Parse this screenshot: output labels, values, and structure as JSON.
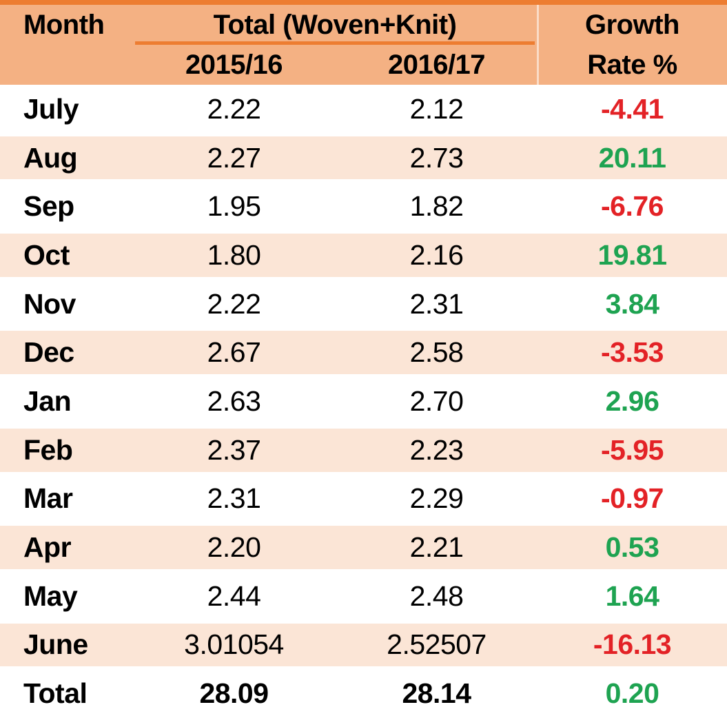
{
  "colors": {
    "accent": "#ED7D31",
    "header_bg": "#F4B183",
    "alt_row_bg": "#FBE5D6",
    "positive": "#1EA351",
    "negative": "#E32226",
    "text": "#000000"
  },
  "header": {
    "month_label": "Month",
    "group_label": "Total (Woven+Knit)",
    "col_2015": "2015/16",
    "col_2016": "2016/17",
    "growth_line1": "Growth",
    "growth_line2": "Rate %"
  },
  "body": {
    "rows": [
      {
        "month": "July",
        "y2015": "2.22",
        "y2016": "2.12",
        "growth": "-4.41",
        "trend": "negative"
      },
      {
        "month": "Aug",
        "y2015": "2.27",
        "y2016": "2.73",
        "growth": "20.11",
        "trend": "positive"
      },
      {
        "month": "Sep",
        "y2015": "1.95",
        "y2016": "1.82",
        "growth": "-6.76",
        "trend": "negative"
      },
      {
        "month": "Oct",
        "y2015": "1.80",
        "y2016": "2.16",
        "growth": "19.81",
        "trend": "positive"
      },
      {
        "month": "Nov",
        "y2015": "2.22",
        "y2016": "2.31",
        "growth": "3.84",
        "trend": "positive"
      },
      {
        "month": "Dec",
        "y2015": "2.67",
        "y2016": "2.58",
        "growth": "-3.53",
        "trend": "negative"
      },
      {
        "month": "Jan",
        "y2015": "2.63",
        "y2016": "2.70",
        "growth": "2.96",
        "trend": "positive"
      },
      {
        "month": "Feb",
        "y2015": "2.37",
        "y2016": "2.23",
        "growth": "-5.95",
        "trend": "negative"
      },
      {
        "month": "Mar",
        "y2015": "2.31",
        "y2016": "2.29",
        "growth": "-0.97",
        "trend": "negative"
      },
      {
        "month": "Apr",
        "y2015": "2.20",
        "y2016": "2.21",
        "growth": "0.53",
        "trend": "positive"
      },
      {
        "month": "May",
        "y2015": "2.44",
        "y2016": "2.48",
        "growth": "1.64",
        "trend": "positive"
      },
      {
        "month": "June",
        "y2015": "3.01054",
        "y2016": "2.52507",
        "growth": "-16.13",
        "trend": "negative"
      },
      {
        "month": "Total",
        "y2015": "28.09",
        "y2016": "28.14",
        "growth": "0.20",
        "trend": "positive",
        "is_total": true
      }
    ]
  },
  "chart_data": {
    "type": "table",
    "title": "",
    "columns": [
      "Month",
      "2015/16",
      "2016/17",
      "Growth Rate %"
    ],
    "column_group": {
      "label": "Total (Woven+Knit)",
      "spans": [
        "2015/16",
        "2016/17"
      ]
    },
    "rows": [
      [
        "July",
        2.22,
        2.12,
        -4.41
      ],
      [
        "Aug",
        2.27,
        2.73,
        20.11
      ],
      [
        "Sep",
        1.95,
        1.82,
        -6.76
      ],
      [
        "Oct",
        1.8,
        2.16,
        19.81
      ],
      [
        "Nov",
        2.22,
        2.31,
        3.84
      ],
      [
        "Dec",
        2.67,
        2.58,
        -3.53
      ],
      [
        "Jan",
        2.63,
        2.7,
        2.96
      ],
      [
        "Feb",
        2.37,
        2.23,
        -5.95
      ],
      [
        "Mar",
        2.31,
        2.29,
        -0.97
      ],
      [
        "Apr",
        2.2,
        2.21,
        0.53
      ],
      [
        "May",
        2.44,
        2.48,
        1.64
      ],
      [
        "June",
        3.01054,
        2.52507,
        -16.13
      ]
    ],
    "total_row": [
      "Total",
      28.09,
      28.14,
      0.2
    ],
    "layout_hints": {
      "zebra_striping": true,
      "negative_growth_color": "#E32226",
      "positive_growth_color": "#1EA351"
    }
  }
}
